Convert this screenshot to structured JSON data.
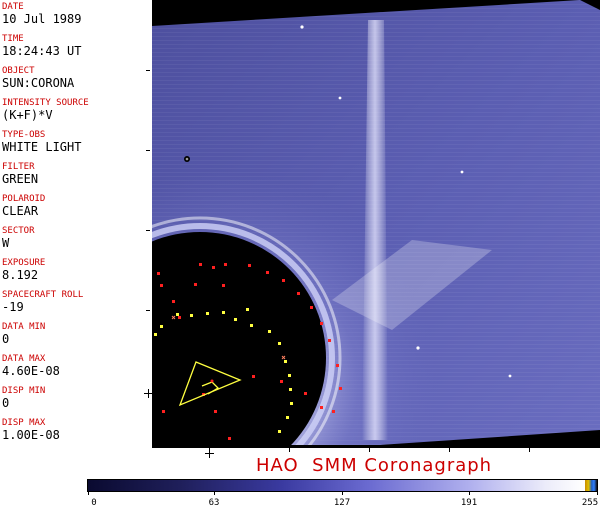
{
  "header_fields": [
    {
      "label": "DATE",
      "value": "10 Jul 1989"
    },
    {
      "label": "TIME",
      "value": "18:24:43 UT"
    },
    {
      "label": "OBJECT",
      "value": "SUN:CORONA"
    },
    {
      "label": "INTENSITY SOURCE",
      "value": "(K+F)*V"
    },
    {
      "label": "TYPE-OBS",
      "value": "WHITE LIGHT"
    },
    {
      "label": "FILTER",
      "value": "GREEN"
    },
    {
      "label": "POLAROID",
      "value": "CLEAR"
    },
    {
      "label": "SECTOR",
      "value": "W"
    },
    {
      "label": "EXPOSURE",
      "value": "8.192"
    },
    {
      "label": "SPACECRAFT ROLL",
      "value": "-19"
    },
    {
      "label": "DATA MIN",
      "value": "0"
    },
    {
      "label": "DATA MAX",
      "value": "4.60E-08"
    },
    {
      "label": "DISP MIN",
      "value": "0"
    },
    {
      "label": "DISP MAX",
      "value": "1.00E-08"
    }
  ],
  "title": "HAO  SMM Coronagraph",
  "colorbar": {
    "ticks": [
      "0",
      "63",
      "127",
      "191",
      "255"
    ],
    "tick_values": [
      0,
      63,
      127,
      191,
      255
    ],
    "max": 255
  },
  "colors": {
    "label_red": "#cc0000",
    "corona_blue": "#5c5fb0",
    "marker_red": "#ff2020",
    "marker_yellow": "#ffff40"
  }
}
